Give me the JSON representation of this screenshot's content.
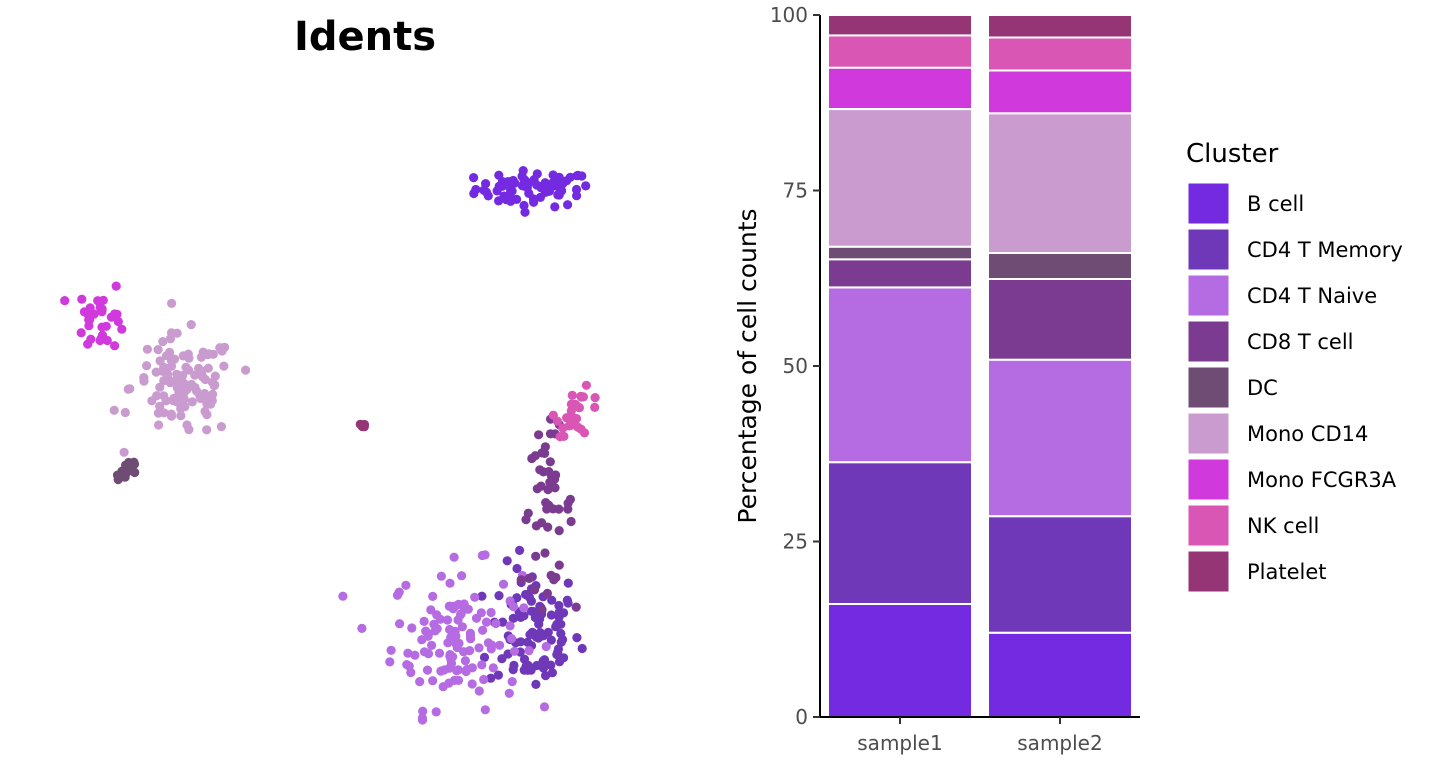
{
  "colors": {
    "B cell": "#742ae0",
    "CD4 T Memory": "#6f38b8",
    "CD4 T Naive": "#b56be2",
    "CD8 T cell": "#7b3b90",
    "DC": "#6e4c73",
    "Mono CD14": "#c99bcf",
    "Mono FCGR3A": "#d03add",
    "NK cell": "#d956b4",
    "Platelet": "#953575"
  },
  "chart_data": [
    {
      "type": "scatter",
      "title": "Idents",
      "xlabel": "",
      "ylabel": "",
      "axes": "none",
      "grid": false,
      "clusters": [
        {
          "name": "B cell",
          "center": [
            0.76,
            0.83
          ],
          "spread": [
            0.045,
            0.014
          ],
          "n": 70
        },
        {
          "name": "CD4 T Memory",
          "center": [
            0.76,
            0.14
          ],
          "spread": [
            0.035,
            0.05
          ],
          "n": 90
        },
        {
          "name": "CD4 T Naive",
          "center": [
            0.64,
            0.13
          ],
          "spread": [
            0.05,
            0.055
          ],
          "n": 120
        },
        {
          "name": "CD8 T cell",
          "center": [
            0.78,
            0.33
          ],
          "spread": [
            0.02,
            0.06
          ],
          "n": 50
        },
        {
          "name": "DC",
          "center": [
            0.135,
            0.39
          ],
          "spread": [
            0.01,
            0.012
          ],
          "n": 12
        },
        {
          "name": "Mono CD14",
          "center": [
            0.22,
            0.52
          ],
          "spread": [
            0.04,
            0.04
          ],
          "n": 110
        },
        {
          "name": "Mono FCGR3A",
          "center": [
            0.095,
            0.63
          ],
          "spread": [
            0.02,
            0.025
          ],
          "n": 30
        },
        {
          "name": "NK cell",
          "center": [
            0.83,
            0.48
          ],
          "spread": [
            0.018,
            0.018
          ],
          "n": 25
        },
        {
          "name": "Platelet",
          "center": [
            0.495,
            0.46
          ],
          "spread": [
            0.003,
            0.003
          ],
          "n": 5
        }
      ]
    },
    {
      "type": "bar",
      "stacked": true,
      "categories": [
        "sample1",
        "sample2"
      ],
      "ylabel": "Percentage of cell counts",
      "xlabel": "",
      "ylim": [
        0,
        100
      ],
      "yticks": [
        0,
        25,
        50,
        75,
        100
      ],
      "legend_title": "Cluster",
      "legend_position": "right",
      "series": [
        {
          "name": "B cell",
          "values": [
            16.1,
            12.0
          ]
        },
        {
          "name": "CD4 T Memory",
          "values": [
            20.2,
            16.6
          ]
        },
        {
          "name": "CD4 T Naive",
          "values": [
            24.9,
            22.3
          ]
        },
        {
          "name": "CD8 T cell",
          "values": [
            4.0,
            11.5
          ]
        },
        {
          "name": "DC",
          "values": [
            1.8,
            3.7
          ]
        },
        {
          "name": "Mono CD14",
          "values": [
            19.6,
            19.9
          ]
        },
        {
          "name": "Mono FCGR3A",
          "values": [
            5.9,
            6.1
          ]
        },
        {
          "name": "NK cell",
          "values": [
            4.6,
            4.7
          ]
        },
        {
          "name": "Platelet",
          "values": [
            2.9,
            3.2
          ]
        }
      ]
    }
  ]
}
